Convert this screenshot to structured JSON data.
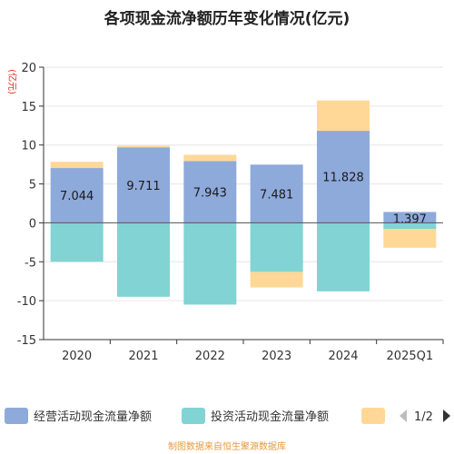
{
  "chart_data": {
    "type": "bar",
    "stacked": true,
    "title": "各项现金流净额历年变化情况(亿元)",
    "ylabel": "(亿元)",
    "categories": [
      "2020",
      "2021",
      "2022",
      "2023",
      "2024",
      "2025Q1"
    ],
    "ylim": [
      -15,
      20
    ],
    "yticks": [
      20,
      15,
      10,
      5,
      0,
      -5,
      -10,
      -15
    ],
    "grid": true,
    "series": [
      {
        "name": "经营活动现金流量净额",
        "color": "#8eaadb",
        "values": [
          7.044,
          9.711,
          7.943,
          7.481,
          11.828,
          1.397
        ]
      },
      {
        "name": "投资活动现金流量净额",
        "color": "#82d3d3",
        "values": [
          -5.0,
          -9.5,
          -10.5,
          -6.3,
          -8.8,
          -0.8
        ]
      },
      {
        "name": "",
        "color": "#ffd898",
        "values": [
          0.8,
          0.2,
          0.8,
          -2.0,
          3.9,
          -2.4
        ]
      }
    ],
    "data_labels": [
      "7.044",
      "9.711",
      "7.943",
      "7.481",
      "11.828",
      "1.397"
    ],
    "legend": {
      "position": "bottom",
      "page": "1/2"
    },
    "source": "制图数据来自恒生聚源数据库"
  }
}
